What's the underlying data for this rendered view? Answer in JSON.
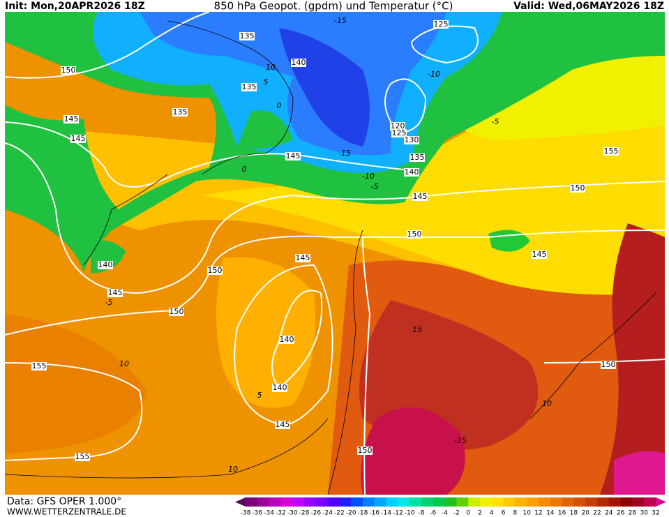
{
  "header": {
    "init": "Init: Mon,20APR2026 18Z",
    "title": "850 hPa Geopot. (gpdm) und Temperatur (°C)",
    "valid": "Valid: Wed,06MAY2026 18Z"
  },
  "footer": {
    "data": "Data: GFS OPER 1.000°",
    "site": "WWW.WETTERZENTRALE.DE"
  },
  "legend": {
    "labels": [
      "-38",
      "-36",
      "-34",
      "-32",
      "-30",
      "-28",
      "-26",
      "-24",
      "-22",
      "-20",
      "-18",
      "-16",
      "-14",
      "-12",
      "-10",
      "-8",
      "-6",
      "-4",
      "-2",
      "0",
      "2",
      "4",
      "6",
      "8",
      "10",
      "12",
      "14",
      "16",
      "18",
      "20",
      "22",
      "24",
      "26",
      "28",
      "30",
      "32"
    ],
    "colors": [
      "#5a0a5a",
      "#7a007a",
      "#9a009a",
      "#b800b8",
      "#d400d4",
      "#c000ff",
      "#9a00ff",
      "#7a00ff",
      "#5000ff",
      "#2020ff",
      "#0050ff",
      "#0080ff",
      "#00a8ff",
      "#00d0ff",
      "#00e8e8",
      "#00e0a0",
      "#00d070",
      "#00c850",
      "#20c020",
      "#60d000",
      "#c8f000",
      "#f0f000",
      "#ffe000",
      "#ffc800",
      "#ffb000",
      "#ffa000",
      "#f58c00",
      "#ec7800",
      "#e06400",
      "#d45000",
      "#c83c00",
      "#b42800",
      "#a01400",
      "#8c0000",
      "#a00028",
      "#c00050",
      "#e00090"
    ]
  },
  "map": {
    "height_labels": [
      "150",
      "145",
      "145",
      "135",
      "140",
      "135",
      "135",
      "125",
      "120",
      "125",
      "130",
      "135",
      "140",
      "145",
      "145",
      "155",
      "150",
      "150",
      "145",
      "145",
      "150",
      "140",
      "145",
      "150",
      "140",
      "140",
      "145",
      "155",
      "155",
      "150",
      "150"
    ],
    "temperature_labels": [
      "-15",
      "-10",
      "-5",
      "-15",
      "-10",
      "-5",
      "0",
      "5",
      "10",
      "-5",
      "10",
      "5",
      "10",
      "10",
      "-15",
      "15",
      "0"
    ]
  }
}
